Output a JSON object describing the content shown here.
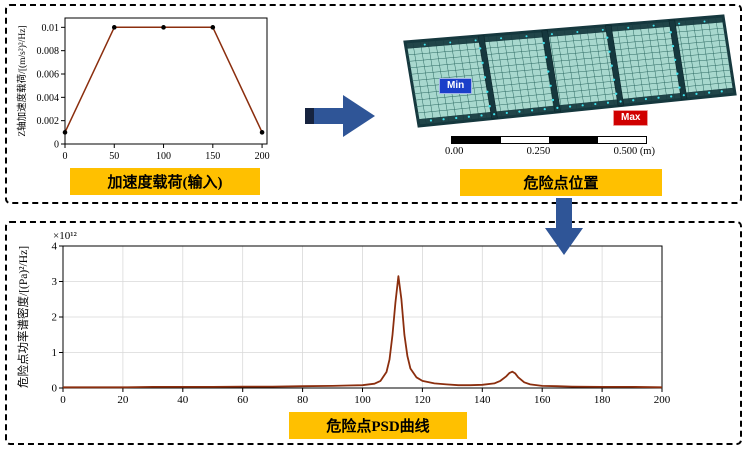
{
  "colors": {
    "accent_yellow": "#FFC000",
    "arrow_blue": "#2F5597",
    "arrow_dark": "#16233F",
    "curve": "#8B2E0E",
    "mesh_fill": "#A8D8CE",
    "mesh_line": "#2E6A63",
    "mesh_dark": "#16383E",
    "mesh_highlight": "#3FE3EE",
    "min_badge_bg": "#1B3FC9",
    "max_badge_bg": "#D00000"
  },
  "fea_view": {
    "min_badge": "Min",
    "max_badge": "Max",
    "scale_labels": [
      "0.00",
      "0.250",
      "0.500 (m)"
    ],
    "caption": "危险点位置"
  },
  "chart_data": [
    {
      "id": "acceleration-input",
      "type": "line",
      "title": "加速度载荷(输入)",
      "xlabel": "",
      "ylabel": "Z轴加速度载荷/[(m/s²)²/Hz]",
      "x": [
        0,
        50,
        100,
        150,
        200
      ],
      "y": [
        0.001,
        0.01,
        0.01,
        0.01,
        0.001
      ],
      "xlim": [
        0,
        205
      ],
      "ylim": [
        0,
        0.0108
      ],
      "xticks": [
        0,
        50,
        100,
        150,
        200
      ],
      "yticks": [
        0,
        0.002,
        0.004,
        0.006,
        0.008,
        0.01
      ],
      "grid": false,
      "markers": true,
      "line_color": "#8B2E0E",
      "marker_color": "#000000",
      "legend": "none"
    },
    {
      "id": "danger-point-psd",
      "type": "line",
      "title": "危险点PSD曲线",
      "xlabel": "",
      "ylabel": "危险点功率谱密度/[(Pa)²/Hz]",
      "scale_label": "×10¹²",
      "x": [
        0,
        10,
        20,
        30,
        40,
        50,
        60,
        70,
        80,
        90,
        95,
        100,
        104,
        106,
        108,
        109,
        110,
        111,
        112,
        113,
        114,
        115,
        116,
        118,
        120,
        124,
        128,
        132,
        136,
        140,
        144,
        146,
        148,
        149,
        150,
        151,
        152,
        154,
        156,
        160,
        165,
        170,
        180,
        190,
        200
      ],
      "y": [
        0.02,
        0.02,
        0.02,
        0.03,
        0.03,
        0.03,
        0.04,
        0.04,
        0.05,
        0.06,
        0.07,
        0.08,
        0.12,
        0.2,
        0.45,
        0.8,
        1.5,
        2.4,
        3.15,
        2.5,
        1.5,
        0.9,
        0.55,
        0.3,
        0.2,
        0.13,
        0.1,
        0.08,
        0.08,
        0.09,
        0.13,
        0.2,
        0.33,
        0.42,
        0.46,
        0.41,
        0.3,
        0.16,
        0.1,
        0.06,
        0.05,
        0.04,
        0.03,
        0.03,
        0.02
      ],
      "xlim": [
        0,
        200
      ],
      "ylim": [
        0,
        4
      ],
      "xticks": [
        0,
        20,
        40,
        60,
        80,
        100,
        120,
        140,
        160,
        180,
        200
      ],
      "yticks": [
        0,
        1,
        2,
        3,
        4
      ],
      "grid": true,
      "markers": false,
      "line_color": "#8B2E0E",
      "peaks": [
        {
          "freq": 112,
          "value": 3.15
        },
        {
          "freq": 150,
          "value": 0.46
        }
      ],
      "legend": "none"
    }
  ]
}
